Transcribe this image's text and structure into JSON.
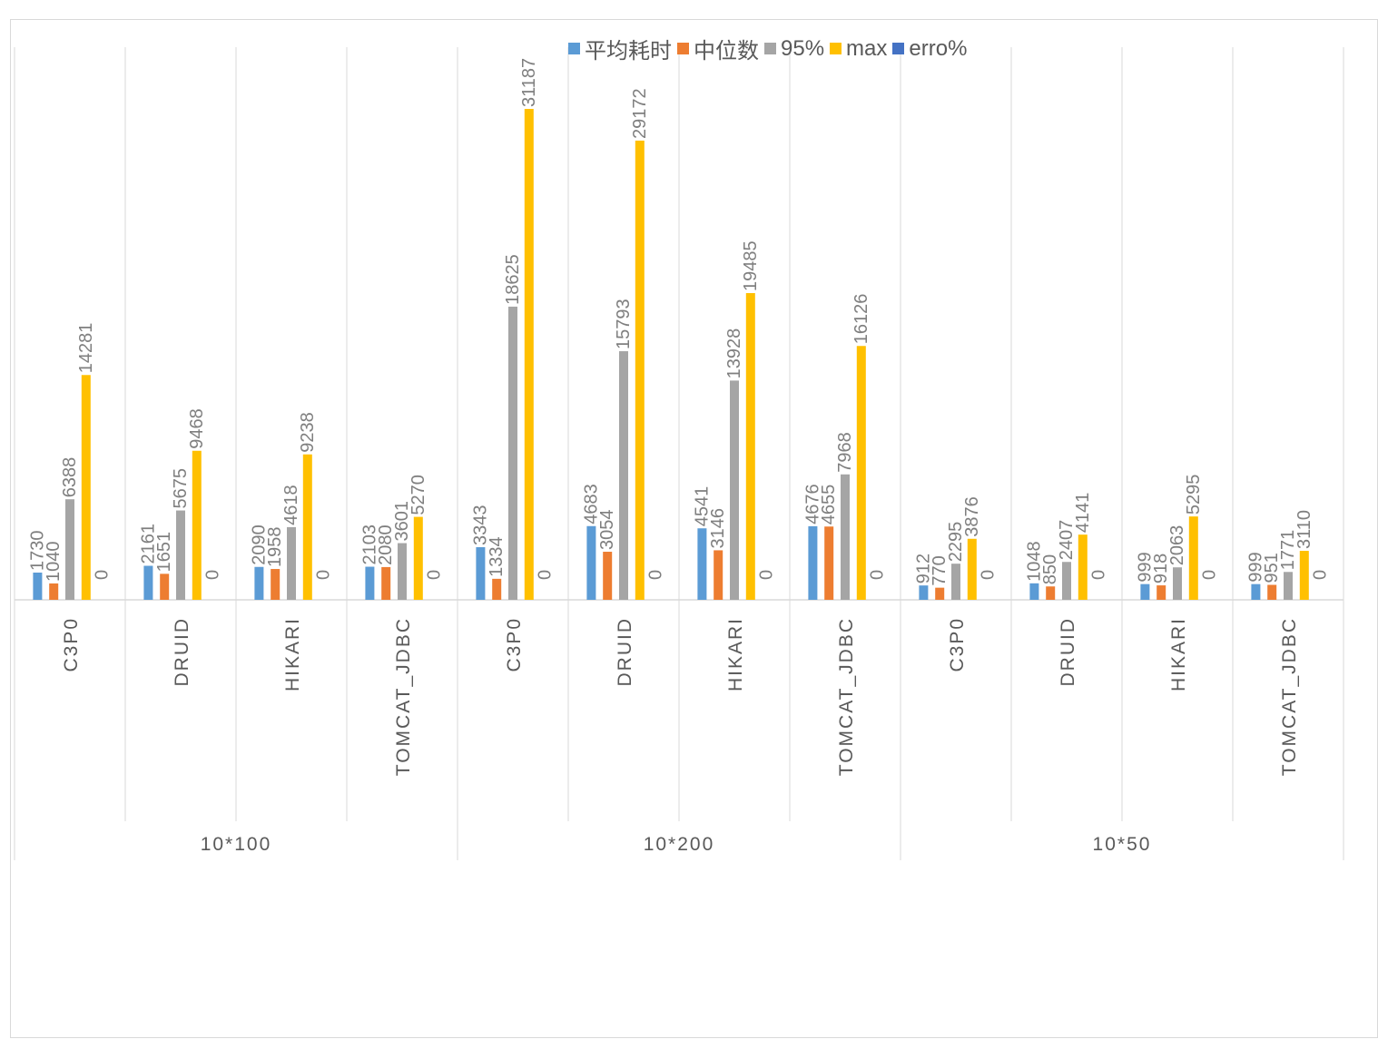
{
  "chart_data": {
    "type": "bar",
    "groups": [
      {
        "label": "10*100",
        "categories": [
          "C3P0",
          "DRUID",
          "HIKARI",
          "TOMCAT_JDBC"
        ]
      },
      {
        "label": "10*200",
        "categories": [
          "C3P0",
          "DRUID",
          "HIKARI",
          "TOMCAT_JDBC"
        ]
      },
      {
        "label": "10*50",
        "categories": [
          "C3P0",
          "DRUID",
          "HIKARI",
          "TOMCAT_JDBC"
        ]
      }
    ],
    "series": [
      {
        "name": "平均耗时",
        "color": "#5b9bd5",
        "values": [
          1730,
          2161,
          2090,
          2103,
          3343,
          4683,
          4541,
          4676,
          912,
          1048,
          999,
          999
        ]
      },
      {
        "name": "中位数",
        "color": "#ed7d31",
        "values": [
          1040,
          1651,
          1958,
          2080,
          1334,
          3054,
          3146,
          4655,
          770,
          850,
          918,
          951
        ]
      },
      {
        "name": "95%",
        "color": "#a5a5a5",
        "values": [
          6388,
          5675,
          4618,
          3601,
          18625,
          15793,
          13928,
          7968,
          2295,
          2407,
          2063,
          1771
        ]
      },
      {
        "name": "max",
        "color": "#ffc000",
        "values": [
          14281,
          9468,
          9238,
          5270,
          31187,
          29172,
          19485,
          16126,
          3876,
          4141,
          5295,
          3110
        ]
      },
      {
        "name": "erro%",
        "color": "#4472c4",
        "values": [
          0,
          0,
          0,
          0,
          0,
          0,
          0,
          0,
          0,
          0,
          0,
          0
        ]
      }
    ],
    "ylim": [
      0,
      35000
    ],
    "legend_position": "top",
    "grid": false
  }
}
